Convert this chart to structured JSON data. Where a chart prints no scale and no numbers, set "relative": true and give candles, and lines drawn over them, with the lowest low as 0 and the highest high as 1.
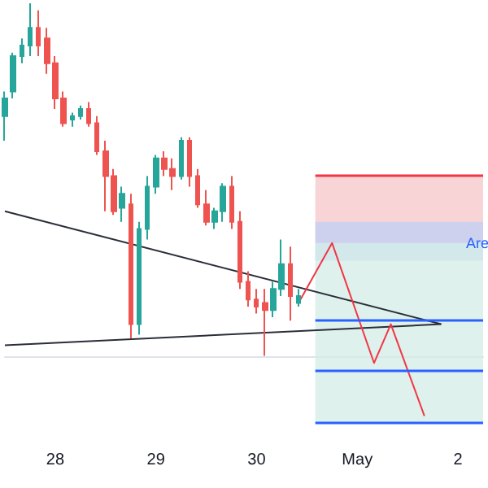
{
  "chart_data": {
    "type": "candlestick",
    "relative": true,
    "grid": false,
    "marker": "none",
    "categories": [
      null,
      null,
      null,
      null,
      null,
      null,
      "28",
      null,
      null,
      null,
      null,
      null,
      null,
      null,
      null,
      null,
      null,
      null,
      "29",
      null,
      null,
      null,
      null,
      null,
      null,
      null,
      null,
      null,
      null,
      null,
      "30",
      null,
      null,
      null,
      null,
      null,
      null,
      null,
      null,
      null,
      null,
      null,
      "May",
      null,
      null,
      null,
      null,
      null,
      null,
      null,
      null,
      null,
      null,
      null,
      "2",
      null,
      null,
      null
    ],
    "series": [
      {
        "ohlc": [
          [
            0.68,
            0.75,
            0.61,
            0.73
          ],
          [
            0.75,
            0.86,
            0.73,
            0.85
          ],
          [
            0.85,
            0.9,
            0.83,
            0.88
          ],
          [
            0.88,
            1,
            0.85,
            0.93
          ],
          [
            0.93,
            0.98,
            0.85,
            0.88
          ],
          [
            0.9,
            0.93,
            0.8,
            0.83
          ],
          [
            0.83,
            0.85,
            0.7,
            0.73
          ],
          [
            0.73,
            0.75,
            0.65,
            0.66
          ],
          [
            0.67,
            0.69,
            0.65,
            0.68
          ],
          [
            0.68,
            0.71,
            0.67,
            0.7
          ],
          [
            0.7,
            0.72,
            0.65,
            0.66
          ],
          [
            0.66,
            0.68,
            0.57,
            0.58
          ],
          [
            0.58,
            0.61,
            0.41,
            0.51
          ],
          [
            0.51,
            0.53,
            0.4,
            0.41
          ],
          [
            0.42,
            0.48,
            0.38,
            0.46
          ],
          [
            0.43,
            0.46,
            0.05,
            0.09
          ],
          [
            0.09,
            0.38,
            0.06,
            0.36
          ],
          [
            0.36,
            0.51,
            0.33,
            0.48
          ],
          [
            0.48,
            0.57,
            0.46,
            0.56
          ],
          [
            0.56,
            0.58,
            0.51,
            0.53
          ],
          [
            0.53,
            0.56,
            0.47,
            0.51
          ],
          [
            0.51,
            0.62,
            0.5,
            0.61
          ],
          [
            0.61,
            0.62,
            0.48,
            0.51
          ],
          [
            0.51,
            0.53,
            0.42,
            0.43
          ],
          [
            0.43,
            0.47,
            0.37,
            0.38
          ],
          [
            0.38,
            0.42,
            0.36,
            0.41
          ],
          [
            0.41,
            0.49,
            0.38,
            0.48
          ],
          [
            0.48,
            0.51,
            0.36,
            0.38
          ],
          [
            0.38,
            0.41,
            0.19,
            0.21
          ],
          [
            0.21,
            0.24,
            0.14,
            0.16
          ],
          [
            0.16,
            0.19,
            0.12,
            0.14
          ],
          [
            0.15,
            0.19,
            0,
            0.13
          ],
          [
            0.13,
            0.21,
            0.11,
            0.19
          ],
          [
            0.19,
            0.33,
            0.17,
            0.26
          ],
          [
            0.26,
            0.31,
            0.1,
            0.17
          ],
          [
            0.15,
            0.19,
            0.14,
            0.17
          ],
          null,
          null,
          null,
          null,
          null,
          null,
          null,
          null,
          null,
          null,
          null,
          null,
          null,
          null,
          null,
          null,
          null,
          null,
          null,
          null,
          null,
          null
        ],
        "colors": [
          "#26a69a",
          "#26a69a",
          "#26a69a",
          "#26a69a",
          "#ef5350",
          "#ef5350",
          "#ef5350",
          "#ef5350",
          "#26a69a",
          "#26a69a",
          "#ef5350",
          "#ef5350",
          "#ef5350",
          "#ef5350",
          "#26a69a",
          "#ef5350",
          "#26a69a",
          "#26a69a",
          "#26a69a",
          "#ef5350",
          "#ef5350",
          "#26a69a",
          "#ef5350",
          "#ef5350",
          "#ef5350",
          "#26a69a",
          "#26a69a",
          "#ef5350",
          "#ef5350",
          "#ef5350",
          "#ef5350",
          "#ef5350",
          "#26a69a",
          "#26a69a",
          "#ef5350",
          "#26a69a",
          null,
          null,
          null,
          null,
          null,
          null,
          null,
          null,
          null,
          null,
          null,
          null,
          null,
          null,
          null,
          null,
          null,
          null,
          null,
          null,
          null,
          null
        ]
      },
      {
        "type": "line",
        "color": "#2a2e39",
        "values": [
          0.41,
          null,
          null,
          null,
          null,
          null,
          null,
          null,
          null,
          null,
          null,
          null,
          null,
          null,
          null,
          null,
          null,
          null,
          null,
          null,
          null,
          null,
          null,
          null,
          null,
          null,
          null,
          null,
          null,
          null,
          null,
          null,
          null,
          null,
          null,
          null,
          null,
          null,
          null,
          null,
          null,
          null,
          null,
          null,
          null,
          null,
          null,
          null,
          null,
          null,
          null,
          null,
          0.09,
          null,
          null,
          null,
          null,
          null
        ]
      },
      {
        "type": "line",
        "color": "#2a2e39",
        "values": [
          0.03,
          null,
          null,
          null,
          null,
          null,
          null,
          null,
          null,
          null,
          null,
          null,
          null,
          null,
          null,
          null,
          null,
          null,
          null,
          null,
          null,
          null,
          null,
          null,
          null,
          null,
          null,
          null,
          null,
          null,
          null,
          null,
          null,
          null,
          null,
          null,
          null,
          null,
          null,
          null,
          null,
          null,
          null,
          null,
          null,
          null,
          null,
          null,
          null,
          null,
          null,
          null,
          0.09,
          null,
          null,
          null,
          null,
          null
        ]
      },
      {
        "type": "line",
        "color": "#f23645",
        "values": [
          null,
          null,
          null,
          null,
          null,
          null,
          null,
          null,
          null,
          null,
          null,
          null,
          null,
          null,
          null,
          null,
          null,
          null,
          null,
          null,
          null,
          null,
          null,
          null,
          null,
          null,
          null,
          null,
          null,
          null,
          null,
          null,
          null,
          null,
          null,
          0.15,
          null,
          null,
          null,
          0.32,
          null,
          null,
          null,
          null,
          -0.02,
          null,
          0.09,
          null,
          null,
          null,
          -0.17,
          null,
          null,
          null,
          null,
          null,
          null,
          null
        ]
      }
    ],
    "bands": [
      {
        "axis": "y",
        "from": 0.32,
        "to": 0.51,
        "color": "#f7c6ca"
      },
      {
        "axis": "y",
        "from": 0.27,
        "to": 0.38,
        "color": "#bdd0f5"
      },
      {
        "axis": "y",
        "from": -0.19,
        "to": 0.32,
        "color": "#d3ece5"
      }
    ],
    "ref_lines": [
      {
        "axis": "y",
        "value": 0.51,
        "color": "#f23645"
      },
      {
        "axis": "y",
        "value": 0.1,
        "color": "#2962ff"
      },
      {
        "axis": "y",
        "value": -0.04,
        "color": "#2962ff"
      },
      {
        "axis": "y",
        "value": -0.19,
        "color": "#2962ff"
      }
    ],
    "annotations": [
      {
        "text": "Are",
        "y": 0.32
      }
    ]
  }
}
